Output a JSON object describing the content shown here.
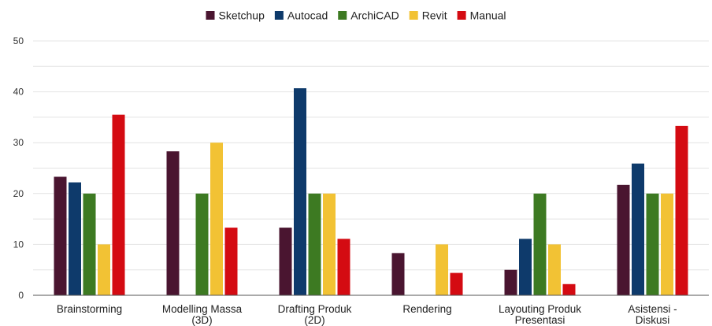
{
  "chart_data": {
    "type": "bar",
    "title": "",
    "xlabel": "",
    "ylabel": "",
    "ylim": [
      0,
      50
    ],
    "yticks": [
      0,
      10,
      20,
      30,
      40,
      50
    ],
    "grid": true,
    "legend_position": "top-center",
    "categories": [
      [
        "Brainstorming"
      ],
      [
        "Modelling Massa",
        "(3D)"
      ],
      [
        "Drafting Produk",
        "(2D)"
      ],
      [
        "Rendering"
      ],
      [
        "Layouting Produk",
        "Presentasi"
      ],
      [
        "Asistensi -",
        "Diskusi"
      ]
    ],
    "series": [
      {
        "name": "Sketchup",
        "color": "#4a1530",
        "values": [
          23.3,
          28.3,
          13.3,
          8.3,
          5.0,
          21.7
        ]
      },
      {
        "name": "Autocad",
        "color": "#0e3a6b",
        "values": [
          22.2,
          0,
          40.7,
          0,
          11.1,
          25.9
        ]
      },
      {
        "name": "ArchiCAD",
        "color": "#3d7a22",
        "values": [
          20,
          20,
          20,
          0,
          20,
          20
        ]
      },
      {
        "name": "Revit",
        "color": "#f2c234",
        "values": [
          10,
          30,
          20,
          10,
          10,
          20
        ]
      },
      {
        "name": "Manual",
        "color": "#d40b12",
        "values": [
          35.5,
          13.3,
          11.1,
          4.4,
          2.2,
          33.3
        ]
      }
    ]
  }
}
